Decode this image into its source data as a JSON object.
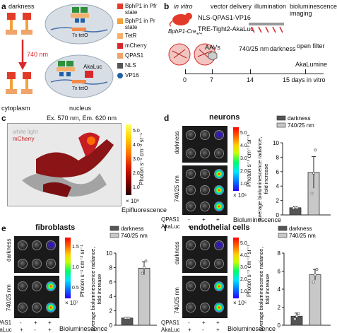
{
  "panels": {
    "a": {
      "letter": "a",
      "darkness": "darkness",
      "wavelength": "740 nm",
      "seven_x_teto": "7x tetO",
      "cytoplasm": "cytoplasm",
      "nucleus": "nucleus",
      "akaluc_gene": "AkaLuc",
      "legend": [
        {
          "label": "BphP1 in Pfr state",
          "color": "#e23b2a"
        },
        {
          "label": "BphP1 in Pr state",
          "color": "#f2a23a"
        },
        {
          "label": "TetR",
          "color": "#f4b06a"
        },
        {
          "label": "mCherry",
          "color": "#d8282b"
        },
        {
          "label": "QPAS1",
          "color": "#f0a46a"
        },
        {
          "label": "NLS",
          "color": "#555555"
        },
        {
          "label": "VP16",
          "color": "#1f5fa8"
        }
      ]
    },
    "b": {
      "letter": "b",
      "in_vitro": "in vitro",
      "mouse_label": "BphP1-Cre",
      "mouse_sub": "+/+",
      "vector_delivery": "vector delivery",
      "constructs": [
        "NLS-QPAS1-VP16",
        "TRE-Tight2-AkaLuc"
      ],
      "illumination": "illumination",
      "bioluminescence_imaging": "bioluminescence imaging",
      "aavs": "AAVs",
      "wavelength": "740/25 nm",
      "darkness": "darkness",
      "open_filter": "open filter",
      "akalumine": "AkaLumine",
      "timeline": [
        "0",
        "7",
        "14",
        "15 days in vitro"
      ]
    },
    "c": {
      "letter": "c",
      "filter": "Ex. 570 nm, Em. 620 nm",
      "white_light": "white light",
      "mcherry": "mCherry",
      "scale_label": "Photon s⁻¹ cm⁻² sr⁻¹",
      "scale_ticks": [
        "5.0",
        "4.0",
        "3.0",
        "2.0",
        "1.0"
      ],
      "scale_mult": "× 10⁸",
      "caption": "Epifluorescence"
    },
    "d": {
      "letter": "d",
      "title": "neurons",
      "row_labels": [
        "darkness",
        "740/25 nm"
      ],
      "scale_label": "Photon s⁻¹ cm⁻² sr⁻¹",
      "scale_ticks": [
        "5.0",
        "4.0",
        "3.0",
        "2.0",
        "1.0"
      ],
      "scale_mult": "× 10⁶",
      "conditions": [
        {
          "label": "QPAS1",
          "marks": [
            "-",
            "+",
            "+"
          ]
        },
        {
          "label": "AkaLuc",
          "marks": [
            "+",
            "-",
            "+"
          ]
        }
      ],
      "caption": "Bioluminescence"
    },
    "e": {
      "letter": "e",
      "title": "fibroblasts",
      "row_labels": [
        "darkness",
        "740/25 nm"
      ],
      "scale_label": "Photon s⁻¹ cm⁻² sr⁻¹",
      "scale_ticks": [
        "1.5",
        "1.0",
        "0.5"
      ],
      "scale_mult": "× 10⁷",
      "conditions": [
        {
          "label": "QPAS1",
          "marks": [
            "-",
            "+",
            "+"
          ]
        },
        {
          "label": "AkaLuc",
          "marks": [
            "+",
            "-",
            "+"
          ]
        }
      ],
      "caption": "Bioluminescence"
    },
    "f": {
      "letter": "f",
      "title": "endothelial cells",
      "row_labels": [
        "darkness",
        "740/25 nm"
      ],
      "scale_label": "Photon s⁻¹ cm⁻² sr⁻¹",
      "scale_ticks": [
        "5.0",
        "4.0",
        "3.0",
        "2.0",
        "1.0"
      ],
      "scale_mult": "× 10⁵",
      "conditions": [
        {
          "label": "QPAS1",
          "marks": [
            "-",
            "+",
            "+"
          ]
        },
        {
          "label": "AkaLuc",
          "marks": [
            "+",
            "-",
            "+"
          ]
        }
      ],
      "caption": "Bioluminescence"
    }
  },
  "chart_data": [
    {
      "panel": "d",
      "type": "bar",
      "categories": [
        "darkness",
        "740/25 nm"
      ],
      "values": [
        1.0,
        5.9
      ],
      "errors": [
        0.15,
        2.2
      ],
      "points": [
        [
          0.95,
          1.05,
          1.0
        ],
        [
          3.0,
          5.8,
          9.0
        ]
      ],
      "ylabel": "Average bioluminescence radiance, fold increase",
      "ylim": [
        0,
        10
      ],
      "yticks": [
        0,
        2,
        4,
        6,
        8,
        10
      ],
      "legend": [
        "darkness",
        "740/25 nm"
      ],
      "colors": [
        "#555555",
        "#c8c8c8"
      ]
    },
    {
      "panel": "e",
      "type": "bar",
      "categories": [
        "darkness",
        "740/25 nm"
      ],
      "values": [
        1.0,
        7.9
      ],
      "errors": [
        0.1,
        0.9
      ],
      "points": [
        [
          1.0,
          1.0,
          1.0
        ],
        [
          7.2,
          8.0,
          8.9
        ]
      ],
      "ylabel": "Average bioluminescence radiance, fold increase",
      "ylim": [
        0,
        10
      ],
      "yticks": [
        0,
        2,
        4,
        6,
        8,
        10
      ],
      "legend": [
        "darkness",
        "740/25 nm"
      ],
      "colors": [
        "#555555",
        "#c8c8c8"
      ]
    },
    {
      "panel": "f",
      "type": "bar",
      "categories": [
        "darkness",
        "740/25 nm"
      ],
      "values": [
        1.0,
        5.6
      ],
      "errors": [
        0.35,
        0.6
      ],
      "points": [
        [
          0.7,
          1.0,
          1.3
        ],
        [
          4.8,
          5.6,
          6.2
        ]
      ],
      "ylabel": "Average bioluminescence radiance, fold increase",
      "ylim": [
        0,
        8
      ],
      "yticks": [
        0,
        2,
        4,
        6,
        8
      ],
      "legend": [
        "darkness",
        "740/25 nm"
      ],
      "colors": [
        "#555555",
        "#c8c8c8"
      ]
    }
  ]
}
